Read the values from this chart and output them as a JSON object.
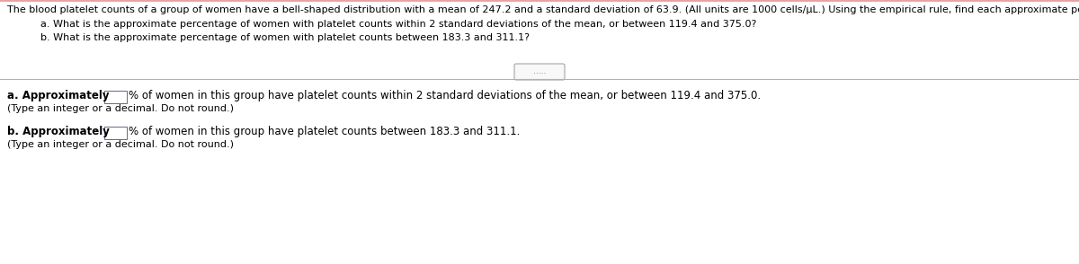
{
  "bg_color": "#ffffff",
  "divider_color": "#b0b0b0",
  "text_color": "#000000",
  "header_text": "The blood platelet counts of a group of women have a bell-shaped distribution with a mean of 247.2 and a standard deviation of 63.9. (All units are 1000 cells/μL.) Using the empirical rule, find each approximate percentage below.",
  "question_a": "a. What is the approximate percentage of women with platelet counts within 2 standard deviations of the mean, or between 119.4 and 375.0?",
  "question_b": "b. What is the approximate percentage of women with platelet counts between 183.3 and 311.1?",
  "answer_a_bold": "a. Approximately ",
  "answer_a_suffix": "% of women in this group have platelet counts within 2 standard deviations of the mean, or between 119.4 and 375.0.",
  "answer_a_note": "(Type an integer or a decimal. Do not round.)",
  "answer_b_bold": "b. Approximately ",
  "answer_b_suffix": "% of women in this group have platelet counts between 183.3 and 311.1.",
  "answer_b_note": "(Type an integer or a decimal. Do not round.)",
  "dots_text": ".....",
  "fs_header": 8.0,
  "fs_question": 8.0,
  "fs_answer": 8.5,
  "fs_note": 8.0,
  "top_border_color": "#e8a0a0",
  "dot_box_color": "#cccccc"
}
